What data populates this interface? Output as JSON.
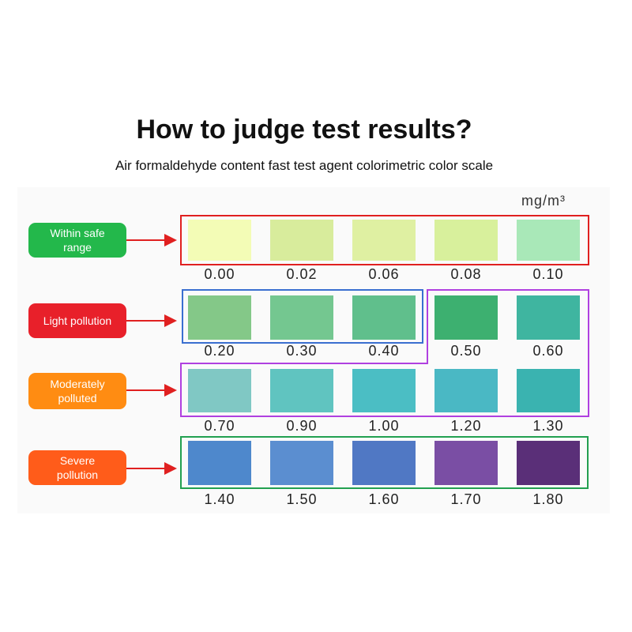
{
  "header": {
    "title": "How to judge test results?",
    "subtitle": "Air formaldehyde content fast test agent colorimetric color scale"
  },
  "unit": "mg/m³",
  "levels": [
    {
      "label": "Within safe range",
      "color": "#23b84b"
    },
    {
      "label": "Light pollution",
      "color": "#e8202a"
    },
    {
      "label": "Moderately polluted",
      "color": "#ff8c12"
    },
    {
      "label": "Severe pollution",
      "color": "#ff5c1a"
    }
  ],
  "swatches": [
    {
      "value": "0.00",
      "color": "#f3fcb6"
    },
    {
      "value": "0.02",
      "color": "#d8ec9c"
    },
    {
      "value": "0.06",
      "color": "#dff0a2"
    },
    {
      "value": "0.08",
      "color": "#d8f09c"
    },
    {
      "value": "0.10",
      "color": "#a9e8b8"
    },
    {
      "value": "0.20",
      "color": "#84c888"
    },
    {
      "value": "0.30",
      "color": "#74c790"
    },
    {
      "value": "0.40",
      "color": "#60bf8c"
    },
    {
      "value": "0.50",
      "color": "#3db070"
    },
    {
      "value": "0.60",
      "color": "#3fb5a0"
    },
    {
      "value": "0.70",
      "color": "#80c8c4"
    },
    {
      "value": "0.90",
      "color": "#60c4c0"
    },
    {
      "value": "1.00",
      "color": "#4bbec4"
    },
    {
      "value": "1.20",
      "color": "#4ab8c4"
    },
    {
      "value": "1.30",
      "color": "#3ab3b0"
    },
    {
      "value": "1.40",
      "color": "#4e88cc"
    },
    {
      "value": "1.50",
      "color": "#5b8ed0"
    },
    {
      "value": "1.60",
      "color": "#5078c4"
    },
    {
      "value": "1.70",
      "color": "#7a4ea4"
    },
    {
      "value": "1.80",
      "color": "#5a2f78"
    }
  ]
}
